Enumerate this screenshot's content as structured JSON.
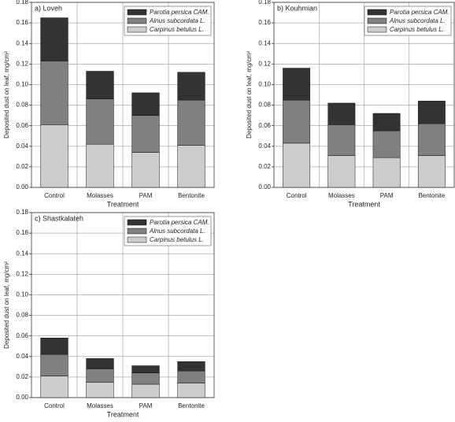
{
  "chart_data": [
    {
      "type": "bar",
      "stacked": true,
      "title": "a) Loveh",
      "xlabel": "Treatment",
      "ylabel": "Deposited dust on leaf, mg/cm²",
      "categories": [
        "Control",
        "Molasses",
        "PAM",
        "Bentonite"
      ],
      "series": [
        {
          "name": "Parotia persica CAM.",
          "color": "#333333",
          "values": [
            0.042,
            0.027,
            0.022,
            0.027
          ]
        },
        {
          "name": "Alnus subcordata L.",
          "color": "#808080",
          "values": [
            0.062,
            0.044,
            0.036,
            0.044
          ]
        },
        {
          "name": "Carpinus betulus L.",
          "color": "#cccccc",
          "values": [
            0.061,
            0.042,
            0.034,
            0.041
          ]
        }
      ],
      "ylim": [
        0,
        0.18
      ],
      "yticks": [
        {
          "value": 0,
          "label": "0.00"
        },
        0.02,
        0.04,
        0.06,
        0.08,
        {
          "value": 0.1,
          "label": "0.10"
        },
        0.12,
        0.14,
        0.16,
        0.18
      ],
      "grid": true,
      "legend": "upper right"
    },
    {
      "type": "bar",
      "stacked": true,
      "title": "b) Kouhmian",
      "xlabel": "Treatment",
      "ylabel": "Deposited dust on leaf, mg/cm²",
      "categories": [
        "Control",
        "Molasses",
        "PAM",
        "Bentonite"
      ],
      "series": [
        {
          "name": "Parotia persica CAM.",
          "color": "#333333",
          "values": [
            0.031,
            0.021,
            0.017,
            0.022
          ]
        },
        {
          "name": "Alnus subcordata L.",
          "color": "#808080",
          "values": [
            0.042,
            0.03,
            0.026,
            0.031
          ]
        },
        {
          "name": "Carpinus betulus L.",
          "color": "#cccccc",
          "values": [
            0.043,
            0.031,
            0.029,
            0.031
          ]
        }
      ],
      "ylim": [
        0,
        0.18
      ],
      "yticks": [
        {
          "value": 0,
          "label": "0.00"
        },
        0.02,
        0.04,
        0.06,
        0.08,
        {
          "value": 0.1,
          "label": "0.10"
        },
        0.12,
        0.14,
        0.16,
        0.18
      ],
      "grid": true,
      "legend": "upper right"
    },
    {
      "type": "bar",
      "stacked": true,
      "title": "c) Shastkalateh",
      "xlabel": "Treatment",
      "ylabel": "Deposited dust on leaf, mg/cm²",
      "categories": [
        "Control",
        "Molasses",
        "PAM",
        "Bentonite"
      ],
      "series": [
        {
          "name": "Parotia persica CAM.",
          "color": "#333333",
          "values": [
            0.016,
            0.01,
            0.007,
            0.009
          ]
        },
        {
          "name": "Alnus subcordata L.",
          "color": "#808080",
          "values": [
            0.021,
            0.013,
            0.011,
            0.012
          ]
        },
        {
          "name": "Carpinus betulus L.",
          "color": "#cccccc",
          "values": [
            0.021,
            0.015,
            0.013,
            0.014
          ]
        }
      ],
      "ylim": [
        0,
        0.18
      ],
      "yticks": [
        {
          "value": 0,
          "label": "0.00"
        },
        0.02,
        0.04,
        0.06,
        0.08,
        {
          "value": 0.1,
          "label": "0.10"
        },
        0.12,
        0.14,
        0.16,
        0.18
      ],
      "grid": true,
      "legend": "upper right"
    }
  ]
}
